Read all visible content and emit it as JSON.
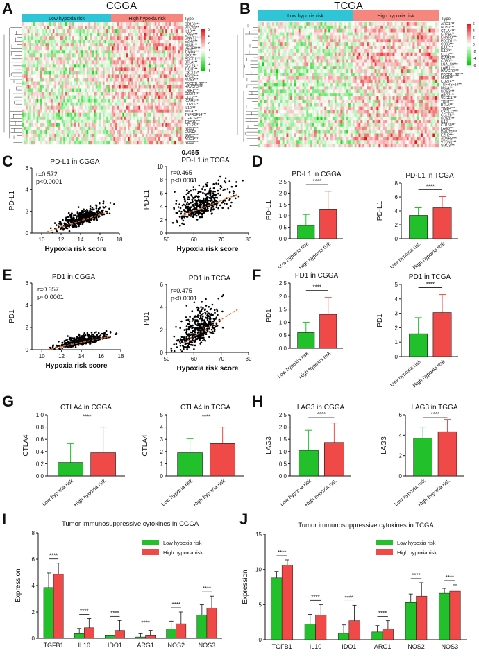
{
  "colors": {
    "green": "#22c02a",
    "red": "#f04a48",
    "heat_low": "#00d200",
    "heat_high": "#e81818",
    "bar_blue": "#2ec6d6",
    "bar_pink": "#f6877e",
    "trend": "#e56b2d"
  },
  "panels": {
    "A": {
      "letter": "A",
      "title": "CGGA",
      "groups": [
        "Low hypoxia risk",
        "High hypoxia risk"
      ],
      "type_label": "Type",
      "genes": [
        "CD160***",
        "VTCN1**",
        "IL13***",
        "LAG3***",
        "DNMT1***",
        "EZH2***",
        "MICB***",
        "VEGFA***",
        "TIMD4***",
        "IDO1***",
        "PDCD1***",
        "BTLA***",
        "CCL24***",
        "TIGIT***",
        "CXCL12*",
        "ARG2***",
        "NOS3***",
        "PDCD1LG2***",
        "HAVCR2***",
        "LAIR1***",
        "CD274***",
        "CCL2***",
        "ICAM1***",
        "CD276***",
        "IL10***",
        "MICA***",
        "TNFRSF14***",
        "LGALS9***",
        "TGFB1***",
        "CCL28***",
        "NOS1***",
        "ENNR8",
        "SMC3***",
        "ARG1***",
        "NOS2***"
      ],
      "legend": [
        "6",
        "4",
        "2",
        "0",
        "-2",
        "-4",
        "-6"
      ]
    },
    "B": {
      "letter": "B",
      "title": "TCGA",
      "groups": [
        "Low hypoxia risk",
        "High hypoxia risk"
      ],
      "type_label": "Type",
      "genes": [
        "ARG1***",
        "NOS2***",
        "CTLA4***",
        "CD244***",
        "ENNR8***",
        "PDCD1***",
        "CD86***",
        "IDO1***",
        "IL10***",
        "CCL2***",
        "ICAM1***",
        "CD80***",
        "LGALS9***",
        "LAIR1***",
        "HAVCR2***",
        "PDCD1LG2***",
        "MICB***",
        "CD274***",
        "TNFRSF14***",
        "MICA***",
        "NOS3***",
        "ARG2***",
        "VEGFA***",
        "TIGIT***",
        "BTLA***",
        "TIMD4***",
        "CXCL12***",
        "CCL28***",
        "NOS1***",
        "IL13",
        "CD160***",
        "LAG3***",
        "DNMT1***",
        "EZH2***",
        "ADNR8***",
        "VTCN1***",
        "SMC3***"
      ],
      "legend": [
        "6",
        "4",
        "2",
        "0",
        "-2",
        "-4",
        "-6"
      ]
    },
    "C": {
      "letter": "C",
      "big_r": "0.465"
    },
    "D": {
      "letter": "D"
    },
    "E": {
      "letter": "E"
    },
    "F": {
      "letter": "F"
    },
    "G": {
      "letter": "G"
    },
    "H": {
      "letter": "H"
    },
    "I": {
      "letter": "I"
    },
    "J": {
      "letter": "J"
    }
  },
  "chart_data": [
    {
      "id": "C1",
      "type": "scatter",
      "title": "PD-L1 in CGGA",
      "xlabel": "Hypoxia risk score",
      "ylabel": "PD-L1",
      "xlim": [
        9,
        18
      ],
      "ylim": [
        0,
        6
      ],
      "xticks": [
        "10",
        "12",
        "14",
        "16",
        "18"
      ],
      "yticks": [
        "0",
        "2",
        "4",
        "6"
      ],
      "annotations": [
        "r=0.572",
        "p<0.0001"
      ],
      "trend": [
        [
          10.5,
          0.1
        ],
        [
          17,
          2.0
        ]
      ],
      "cloud": {
        "x_mean": 14.2,
        "x_sd": 1.2,
        "y_offset": 0.0,
        "y_sd": 0.45
      }
    },
    {
      "id": "C2",
      "type": "scatter",
      "title": "PD-L1 in TCGA",
      "xlabel": "Hypoxia risk score",
      "ylabel": "PD-L1",
      "xlim": [
        50,
        80
      ],
      "ylim": [
        0,
        10
      ],
      "xticks": [
        "50",
        "60",
        "70",
        "80"
      ],
      "yticks": [
        "0",
        "2",
        "4",
        "6",
        "8",
        "10"
      ],
      "annotations": [
        "r=0.465",
        "p<0.0001"
      ],
      "trend": [
        [
          55,
          2.5
        ],
        [
          76,
          5.8
        ]
      ],
      "cloud": {
        "x_mean": 63,
        "x_sd": 4.5,
        "y_offset": 0.0,
        "y_sd": 1.5
      }
    },
    {
      "id": "E1",
      "type": "scatter",
      "title": "PD1 in CGGA",
      "xlabel": "Hypoxia risk score",
      "ylabel": "PD1",
      "xlim": [
        9,
        18
      ],
      "ylim": [
        0,
        6
      ],
      "xticks": [
        "10",
        "12",
        "14",
        "16",
        "18"
      ],
      "yticks": [
        "0",
        "2",
        "4",
        "6"
      ],
      "annotations": [
        "r=0.357",
        "p<0.0001"
      ],
      "trend": [
        [
          10.5,
          0.0
        ],
        [
          17,
          1.2
        ]
      ],
      "cloud": {
        "x_mean": 14.2,
        "x_sd": 1.2,
        "y_offset": 0.0,
        "y_sd": 0.3
      }
    },
    {
      "id": "E2",
      "type": "scatter",
      "title": "PD1 in TCGA",
      "xlabel": "Hypoxia risk score",
      "ylabel": "PD1",
      "xlim": [
        50,
        80
      ],
      "ylim": [
        0,
        6
      ],
      "xticks": [
        "50",
        "60",
        "70",
        "80"
      ],
      "yticks": [
        "0",
        "2",
        "4",
        "6"
      ],
      "annotations": [
        "r=0.475",
        "p<0.0001"
      ],
      "trend": [
        [
          56,
          0.8
        ],
        [
          76,
          3.8
        ]
      ],
      "cloud": {
        "x_mean": 62,
        "x_sd": 3.5,
        "y_offset": 0.0,
        "y_sd": 1.0
      }
    },
    {
      "id": "D1",
      "type": "bar",
      "title": "PD-L1 in CGGA",
      "ylabel": "PD-L1",
      "categories": [
        "Low hypoxia risk",
        "High hypoxia risk"
      ],
      "values": [
        0.58,
        1.3
      ],
      "errors": [
        0.48,
        0.78
      ],
      "ylim": [
        0,
        2.5
      ],
      "yticks": [
        "0.0",
        "0.5",
        "1.0",
        "1.5",
        "2.0",
        "2.5"
      ],
      "sig": "****"
    },
    {
      "id": "D2",
      "type": "bar",
      "title": "PD-L1 in TCGA",
      "ylabel": "PD-L1",
      "categories": [
        "Low hypoxia risk",
        "High hypoxia risk"
      ],
      "values": [
        3.35,
        4.45
      ],
      "errors": [
        1.1,
        1.6
      ],
      "ylim": [
        0,
        8
      ],
      "yticks": [
        "0",
        "2",
        "4",
        "6",
        "8"
      ],
      "sig": "****"
    },
    {
      "id": "F1",
      "type": "bar",
      "title": "PD1 in CGGA",
      "ylabel": "PD1",
      "categories": [
        "Low hypoxia risk",
        "High hypoxia risk"
      ],
      "values": [
        0.6,
        1.3
      ],
      "errors": [
        0.4,
        0.65
      ],
      "ylim": [
        0,
        2.5
      ],
      "yticks": [
        "0.0",
        "0.5",
        "1.0",
        "1.5",
        "2.0",
        "2.5"
      ],
      "sig": "****"
    },
    {
      "id": "F2",
      "type": "bar",
      "title": "PD1 in TCGA",
      "ylabel": "PD1",
      "categories": [
        "Low hypoxia risk",
        "High hypoxia risk"
      ],
      "values": [
        1.58,
        3.05
      ],
      "errors": [
        1.12,
        1.25
      ],
      "ylim": [
        0,
        5
      ],
      "yticks": [
        "0",
        "1",
        "2",
        "3",
        "4",
        "5"
      ],
      "sig": "****"
    },
    {
      "id": "G1",
      "type": "bar",
      "title": "CTLA4 in CGGA",
      "ylabel": "CTLA4",
      "categories": [
        "Low hypoxia risk",
        "High hypoxia risk"
      ],
      "values": [
        0.22,
        0.38
      ],
      "errors": [
        0.31,
        0.42
      ],
      "ylim": [
        0,
        1.0
      ],
      "yticks": [
        "0.0",
        "0.2",
        "0.4",
        "0.6",
        "0.8",
        "1.0"
      ],
      "sig": "****"
    },
    {
      "id": "G2",
      "type": "bar",
      "title": "CTLA4 in TCGA",
      "ylabel": "CTLA4",
      "categories": [
        "Low hypoxia risk",
        "High hypoxia risk"
      ],
      "values": [
        1.9,
        2.65
      ],
      "errors": [
        1.15,
        1.35
      ],
      "ylim": [
        0,
        5
      ],
      "yticks": [
        "0",
        "1",
        "2",
        "3",
        "4",
        "5"
      ],
      "sig": "****"
    },
    {
      "id": "H1",
      "type": "bar",
      "title": "LAG3 in CGGA",
      "ylabel": "LAG3",
      "categories": [
        "Low hypoxia risk",
        "High hypoxia risk"
      ],
      "values": [
        1.05,
        1.37
      ],
      "errors": [
        0.82,
        0.8
      ],
      "ylim": [
        0,
        2.5
      ],
      "yticks": [
        "0.0",
        "0.5",
        "1.0",
        "1.5",
        "2.0",
        "2.5"
      ],
      "sig": "****"
    },
    {
      "id": "H2",
      "type": "bar",
      "title": "LAG3 in TGGA",
      "ylabel": "LAG3",
      "categories": [
        "Low hypoxia risk",
        "High hypoxia risk"
      ],
      "values": [
        3.7,
        4.35
      ],
      "errors": [
        1.1,
        1.2
      ],
      "ylim": [
        0,
        6
      ],
      "yticks": [
        "0",
        "2",
        "4",
        "6"
      ],
      "sig": "****"
    },
    {
      "id": "I",
      "type": "bar",
      "title": "Tumor immunosuppressive cytokines in CGGA",
      "ylabel": "Expression",
      "categories": [
        "TGFB1",
        "IL10",
        "IDO1",
        "ARG1",
        "NOS2",
        "NOS3"
      ],
      "series": [
        {
          "name": "Low hypoxia risk",
          "values": [
            3.85,
            0.35,
            0.2,
            0.1,
            0.7,
            1.75
          ],
          "errors": [
            1.1,
            0.4,
            0.35,
            0.25,
            0.6,
            0.8
          ]
        },
        {
          "name": "High hypoxia risk",
          "values": [
            4.85,
            0.8,
            0.6,
            0.2,
            1.1,
            2.3
          ],
          "errors": [
            0.85,
            0.7,
            0.75,
            0.4,
            0.9,
            0.9
          ]
        }
      ],
      "ylim": [
        0,
        8
      ],
      "yticks": [
        "0",
        "2",
        "4",
        "6",
        "8"
      ],
      "sig": "****"
    },
    {
      "id": "J",
      "type": "bar",
      "title": "Tumor immunosuppressive cytokines in TCGA",
      "ylabel": "Expression",
      "categories": [
        "TGFB1",
        "IL10",
        "IDO1",
        "ARG1",
        "NOS2",
        "NOS3"
      ],
      "series": [
        {
          "name": "Low hypoxia risk",
          "values": [
            8.8,
            2.2,
            0.9,
            1.1,
            5.3,
            6.6
          ],
          "errors": [
            0.9,
            1.4,
            1.2,
            0.9,
            1.2,
            0.7
          ]
        },
        {
          "name": "High hypoxia risk",
          "values": [
            10.6,
            3.5,
            2.7,
            1.5,
            6.2,
            6.9
          ],
          "errors": [
            0.75,
            1.5,
            2.2,
            1.2,
            1.9,
            0.9
          ]
        }
      ],
      "ylim": [
        0,
        15
      ],
      "yticks": [
        "0",
        "5",
        "10",
        "15"
      ],
      "sig": "****"
    }
  ]
}
